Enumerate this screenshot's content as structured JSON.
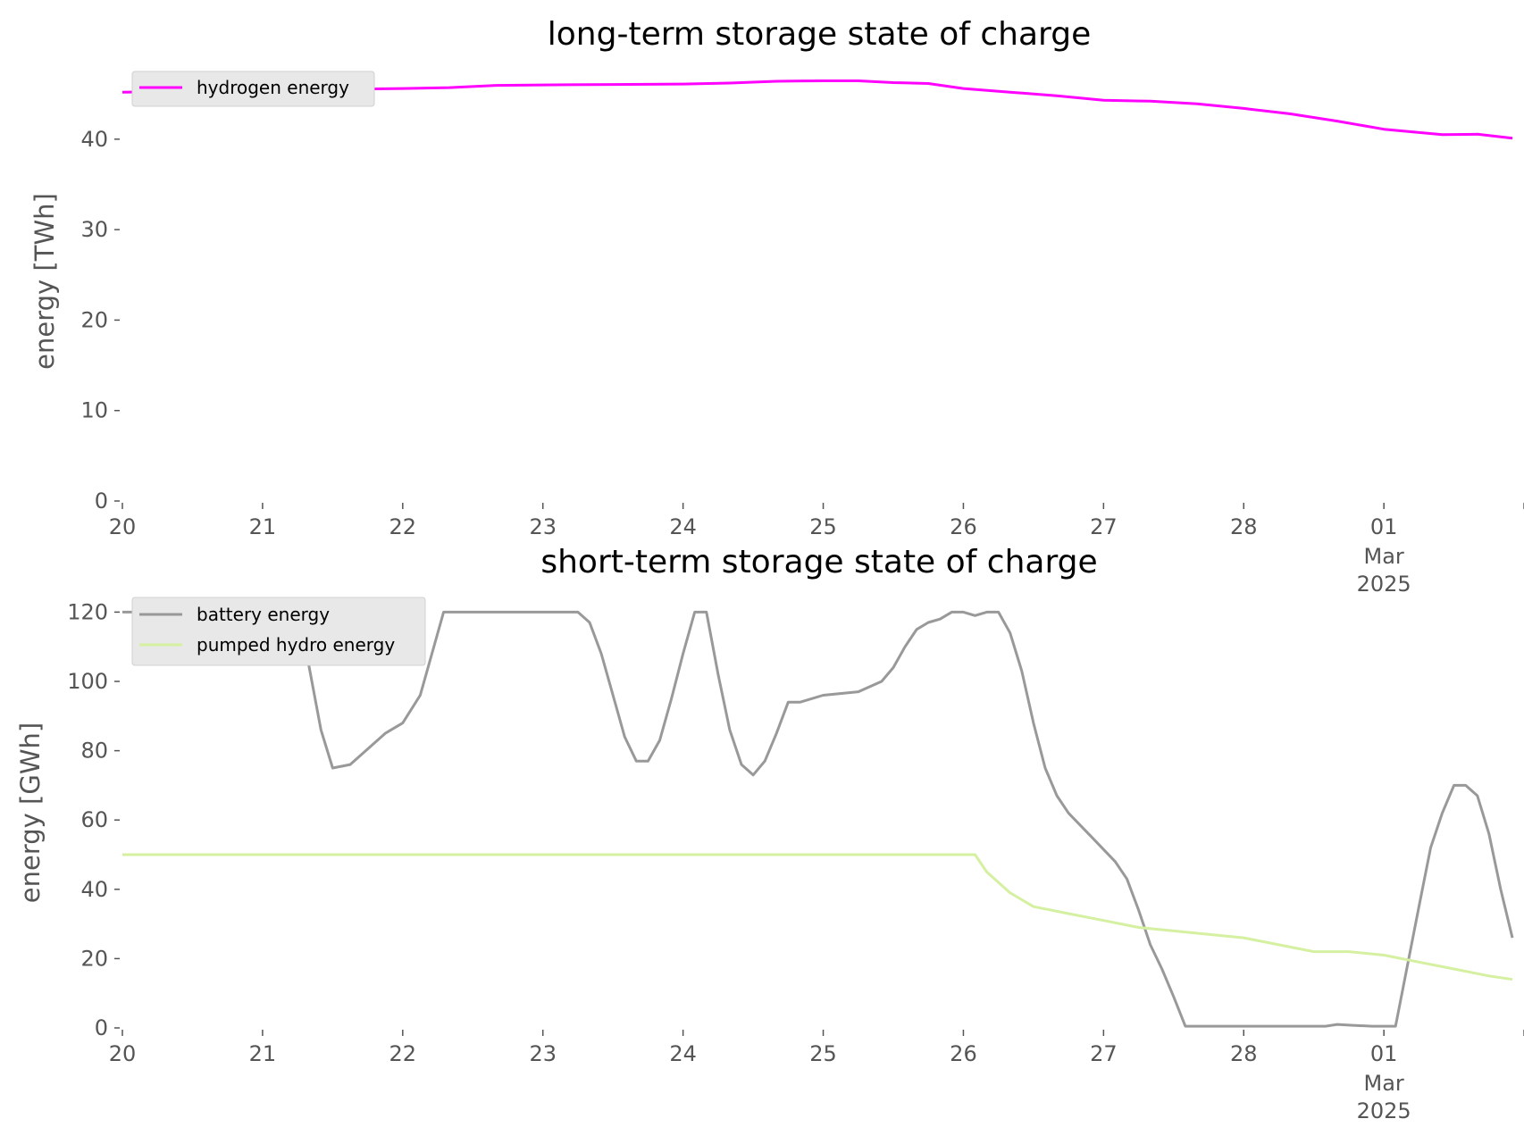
{
  "colors": {
    "hydrogen": "#ff00ff",
    "battery": "#999999",
    "pumped_hydro": "#d4f0a0",
    "legend_bg": "#e8e8e8",
    "tick": "#555555"
  },
  "chart_data": [
    {
      "type": "line",
      "title": "long-term storage state of charge",
      "xlabel": "",
      "ylabel": "energy [TWh]",
      "ylim": [
        0,
        46.5
      ],
      "xlim": [
        "2025-02-20 00:00",
        "2025-03-01 22:00"
      ],
      "grid": false,
      "legend_position": "top-left",
      "y_ticks": [
        "0",
        "10",
        "20",
        "30",
        "40"
      ],
      "x_ticks": [
        "20",
        "21",
        "22",
        "23",
        "24",
        "25",
        "26",
        "27",
        "28",
        "01",
        "",
        ""
      ],
      "x_tick_sub": {
        "month": "Mar",
        "year": "2025"
      },
      "series": [
        {
          "name": "hydrogen energy",
          "color_key": "hydrogen",
          "points": [
            [
              "2025-02-20 00:00",
              45.2
            ],
            [
              "2025-02-20 12:00",
              45.3
            ],
            [
              "2025-02-21 00:00",
              45.4
            ],
            [
              "2025-02-21 12:00",
              45.5
            ],
            [
              "2025-02-22 00:00",
              45.6
            ],
            [
              "2025-02-22 08:00",
              45.7
            ],
            [
              "2025-02-22 16:00",
              45.95
            ],
            [
              "2025-02-23 00:00",
              46.0
            ],
            [
              "2025-02-23 12:00",
              46.05
            ],
            [
              "2025-02-24 00:00",
              46.1
            ],
            [
              "2025-02-24 08:00",
              46.2
            ],
            [
              "2025-02-24 16:00",
              46.4
            ],
            [
              "2025-02-25 00:00",
              46.45
            ],
            [
              "2025-02-25 06:00",
              46.45
            ],
            [
              "2025-02-25 12:00",
              46.25
            ],
            [
              "2025-02-25 18:00",
              46.15
            ],
            [
              "2025-02-26 00:00",
              45.6
            ],
            [
              "2025-02-26 08:00",
              45.2
            ],
            [
              "2025-02-26 16:00",
              44.8
            ],
            [
              "2025-02-27 00:00",
              44.3
            ],
            [
              "2025-02-27 08:00",
              44.2
            ],
            [
              "2025-02-27 16:00",
              43.9
            ],
            [
              "2025-02-28 00:00",
              43.4
            ],
            [
              "2025-02-28 08:00",
              42.8
            ],
            [
              "2025-02-28 16:00",
              42.0
            ],
            [
              "2025-03-01 00:00",
              41.1
            ],
            [
              "2025-03-01 10:00",
              40.5
            ],
            [
              "2025-03-01 16:00",
              40.55
            ],
            [
              "2025-03-01 22:00",
              40.1
            ]
          ]
        }
      ]
    },
    {
      "type": "line",
      "title": "short-term storage state of charge",
      "xlabel": "",
      "ylabel": "energy [GWh]",
      "ylim": [
        0,
        125
      ],
      "xlim": [
        "2025-02-20 00:00",
        "2025-03-01 22:00"
      ],
      "grid": false,
      "legend_position": "top-left",
      "y_ticks": [
        "0",
        "20",
        "40",
        "60",
        "80",
        "100",
        "120"
      ],
      "x_ticks": [
        "20",
        "21",
        "22",
        "23",
        "24",
        "25",
        "26",
        "27",
        "28",
        "01",
        "",
        ""
      ],
      "x_tick_sub": {
        "month": "Mar",
        "year": "2025"
      },
      "series": [
        {
          "name": "battery energy",
          "color_key": "battery",
          "points": [
            [
              "2025-02-20 00:00",
              120
            ],
            [
              "2025-02-20 04:00",
              120
            ],
            [
              "2025-02-20 06:00",
              111
            ],
            [
              "2025-02-20 12:00",
              111
            ],
            [
              "2025-02-20 18:00",
              112
            ],
            [
              "2025-02-20 22:00",
              113
            ],
            [
              "2025-02-21 00:00",
              114
            ],
            [
              "2025-02-21 02:00",
              120
            ],
            [
              "2025-02-21 06:00",
              120
            ],
            [
              "2025-02-21 08:00",
              104
            ],
            [
              "2025-02-21 10:00",
              86
            ],
            [
              "2025-02-21 12:00",
              75
            ],
            [
              "2025-02-21 15:00",
              76
            ],
            [
              "2025-02-21 21:00",
              85
            ],
            [
              "2025-02-22 00:00",
              88
            ],
            [
              "2025-02-22 03:00",
              96
            ],
            [
              "2025-02-22 05:00",
              108
            ],
            [
              "2025-02-22 07:00",
              120
            ],
            [
              "2025-02-23 06:00",
              120
            ],
            [
              "2025-02-23 08:00",
              117
            ],
            [
              "2025-02-23 10:00",
              108
            ],
            [
              "2025-02-23 12:00",
              96
            ],
            [
              "2025-02-23 14:00",
              84
            ],
            [
              "2025-02-23 16:00",
              77
            ],
            [
              "2025-02-23 18:00",
              77
            ],
            [
              "2025-02-23 20:00",
              83
            ],
            [
              "2025-02-23 22:00",
              95
            ],
            [
              "2025-02-24 00:00",
              108
            ],
            [
              "2025-02-24 02:00",
              120
            ],
            [
              "2025-02-24 04:00",
              120
            ],
            [
              "2025-02-24 06:00",
              102
            ],
            [
              "2025-02-24 08:00",
              86
            ],
            [
              "2025-02-24 10:00",
              76
            ],
            [
              "2025-02-24 12:00",
              73
            ],
            [
              "2025-02-24 14:00",
              77
            ],
            [
              "2025-02-24 16:00",
              85
            ],
            [
              "2025-02-24 18:00",
              94
            ],
            [
              "2025-02-24 20:00",
              94
            ],
            [
              "2025-02-25 00:00",
              96
            ],
            [
              "2025-02-25 06:00",
              97
            ],
            [
              "2025-02-25 10:00",
              100
            ],
            [
              "2025-02-25 12:00",
              104
            ],
            [
              "2025-02-25 14:00",
              110
            ],
            [
              "2025-02-25 16:00",
              115
            ],
            [
              "2025-02-25 18:00",
              117
            ],
            [
              "2025-02-25 20:00",
              118
            ],
            [
              "2025-02-25 22:00",
              120
            ],
            [
              "2025-02-26 00:00",
              120
            ],
            [
              "2025-02-26 02:00",
              119
            ],
            [
              "2025-02-26 04:00",
              120
            ],
            [
              "2025-02-26 06:00",
              120
            ],
            [
              "2025-02-26 08:00",
              114
            ],
            [
              "2025-02-26 10:00",
              103
            ],
            [
              "2025-02-26 12:00",
              88
            ],
            [
              "2025-02-26 14:00",
              75
            ],
            [
              "2025-02-26 16:00",
              67
            ],
            [
              "2025-02-26 18:00",
              62
            ],
            [
              "2025-02-26 22:00",
              55
            ],
            [
              "2025-02-27 02:00",
              48
            ],
            [
              "2025-02-27 04:00",
              43
            ],
            [
              "2025-02-27 06:00",
              34
            ],
            [
              "2025-02-27 08:00",
              24
            ],
            [
              "2025-02-27 10:00",
              17
            ],
            [
              "2025-02-27 12:00",
              9
            ],
            [
              "2025-02-27 14:00",
              0.5
            ],
            [
              "2025-02-28 14:00",
              0.5
            ],
            [
              "2025-02-28 16:00",
              1
            ],
            [
              "2025-02-28 18:00",
              0.8
            ],
            [
              "2025-02-28 22:00",
              0.5
            ],
            [
              "2025-03-01 02:00",
              0.5
            ],
            [
              "2025-03-01 06:00",
              35
            ],
            [
              "2025-03-01 08:00",
              52
            ],
            [
              "2025-03-01 10:00",
              62
            ],
            [
              "2025-03-01 12:00",
              70
            ],
            [
              "2025-03-01 14:00",
              70
            ],
            [
              "2025-03-01 16:00",
              67
            ],
            [
              "2025-03-01 18:00",
              56
            ],
            [
              "2025-03-01 20:00",
              40
            ],
            [
              "2025-03-01 22:00",
              26
            ]
          ]
        },
        {
          "name": "pumped hydro energy",
          "color_key": "pumped_hydro",
          "points": [
            [
              "2025-02-20 00:00",
              50
            ],
            [
              "2025-02-26 02:00",
              50
            ],
            [
              "2025-02-26 04:00",
              45
            ],
            [
              "2025-02-26 08:00",
              39
            ],
            [
              "2025-02-26 12:00",
              35
            ],
            [
              "2025-02-26 18:00",
              33
            ],
            [
              "2025-02-27 00:00",
              31
            ],
            [
              "2025-02-27 06:00",
              29
            ],
            [
              "2025-02-27 12:00",
              28
            ],
            [
              "2025-02-27 18:00",
              27
            ],
            [
              "2025-02-28 00:00",
              26
            ],
            [
              "2025-02-28 06:00",
              24
            ],
            [
              "2025-02-28 12:00",
              22
            ],
            [
              "2025-02-28 18:00",
              22
            ],
            [
              "2025-03-01 00:00",
              21
            ],
            [
              "2025-03-01 06:00",
              19
            ],
            [
              "2025-03-01 12:00",
              17
            ],
            [
              "2025-03-01 18:00",
              15
            ],
            [
              "2025-03-01 22:00",
              14
            ]
          ]
        }
      ]
    }
  ]
}
